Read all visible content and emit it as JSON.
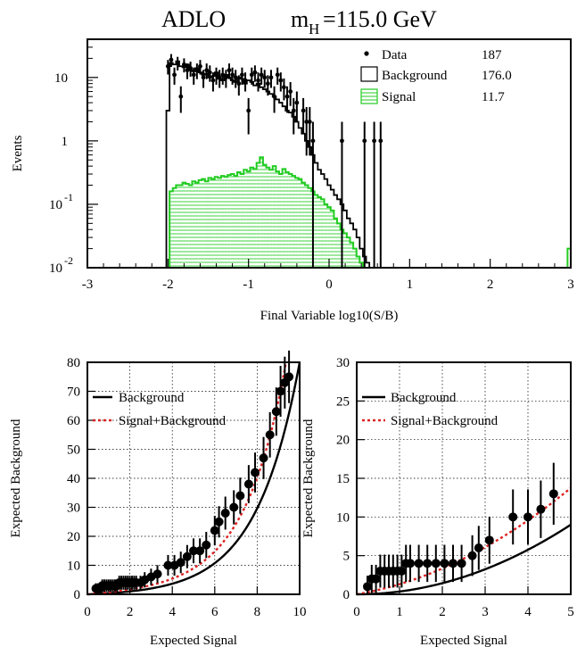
{
  "header": {
    "title_main": "ADLO",
    "title_mass_m": "m",
    "title_mass_sub": "H",
    "title_mass_value": "=115.0 GeV"
  },
  "chart_data": [
    {
      "type": "histogram",
      "title": "ADLO  m_H=115.0 GeV",
      "xlabel": "Final Variable log10(S/B)",
      "ylabel": "Events",
      "y_scale": "log",
      "xlim": [
        -3,
        3
      ],
      "ylim": [
        0.01,
        40
      ],
      "x_ticks": [
        "-3",
        "-2",
        "-1",
        "0",
        "1",
        "2",
        "3"
      ],
      "y_ticks": [
        {
          "value": 10,
          "base": "10",
          "exp": ""
        },
        {
          "value": 1,
          "base": "1",
          "exp": ""
        },
        {
          "value": 0.1,
          "base": "10",
          "exp": "-1"
        },
        {
          "value": 0.01,
          "base": "10",
          "exp": "-2"
        }
      ],
      "legend": {
        "position": "top-right",
        "entries": [
          {
            "label": "Data",
            "value": "187"
          },
          {
            "label": "Background",
            "value": "176.0"
          },
          {
            "label": "Signal",
            "value": "11.7"
          }
        ]
      },
      "bin_edges_start": -2.02,
      "bin_width": 0.04,
      "background": [
        3.0,
        17.0,
        16.0,
        18.0,
        15.0,
        14.5,
        16.0,
        13.0,
        12.5,
        14.0,
        12.0,
        11.0,
        11.5,
        10.0,
        10.5,
        12.0,
        9.5,
        9.0,
        11.0,
        10.0,
        9.0,
        8.5,
        10.0,
        9.5,
        8.0,
        9.0,
        8.5,
        7.5,
        8.0,
        7.0,
        6.5,
        6.0,
        5.5,
        5.0,
        4.5,
        4.0,
        3.5,
        3.0,
        2.8,
        2.4,
        2.0,
        1.6,
        1.3,
        1.0,
        0.8,
        0.6,
        0.45,
        0.35,
        0.3,
        0.25,
        0.2,
        0.17,
        0.14,
        0.12,
        0.1,
        0.08,
        0.06,
        0.05,
        0.04,
        0.03,
        0.02,
        0.015,
        0.012,
        0.01
      ],
      "signal": [
        0.01,
        0.16,
        0.18,
        0.2,
        0.2,
        0.22,
        0.21,
        0.2,
        0.23,
        0.22,
        0.24,
        0.25,
        0.23,
        0.26,
        0.25,
        0.27,
        0.26,
        0.28,
        0.27,
        0.29,
        0.3,
        0.28,
        0.32,
        0.3,
        0.35,
        0.33,
        0.38,
        0.36,
        0.45,
        0.55,
        0.42,
        0.38,
        0.35,
        0.4,
        0.33,
        0.3,
        0.36,
        0.32,
        0.3,
        0.28,
        0.26,
        0.25,
        0.22,
        0.2,
        0.18,
        0.16,
        0.14,
        0.13,
        0.12,
        0.1,
        0.09,
        0.08,
        0.06,
        0.05,
        0.04,
        0.035,
        0.03,
        0.025,
        0.02,
        0.015,
        0.012,
        0.01,
        0.01,
        0.01
      ],
      "data": [
        {
          "x": -2.0,
          "y": 15
        },
        {
          "x": -1.96,
          "y": 19
        },
        {
          "x": -1.92,
          "y": 11
        },
        {
          "x": -1.88,
          "y": 17
        },
        {
          "x": -1.84,
          "y": 5
        },
        {
          "x": -1.8,
          "y": 16
        },
        {
          "x": -1.76,
          "y": 13
        },
        {
          "x": -1.72,
          "y": 14
        },
        {
          "x": -1.68,
          "y": 11
        },
        {
          "x": -1.64,
          "y": 13
        },
        {
          "x": -1.6,
          "y": 15
        },
        {
          "x": -1.56,
          "y": 10
        },
        {
          "x": -1.52,
          "y": 13
        },
        {
          "x": -1.48,
          "y": 12
        },
        {
          "x": -1.44,
          "y": 9
        },
        {
          "x": -1.4,
          "y": 11
        },
        {
          "x": -1.36,
          "y": 10
        },
        {
          "x": -1.32,
          "y": 11
        },
        {
          "x": -1.28,
          "y": 10
        },
        {
          "x": -1.24,
          "y": 13
        },
        {
          "x": -1.2,
          "y": 11
        },
        {
          "x": -1.16,
          "y": 10
        },
        {
          "x": -1.12,
          "y": 8
        },
        {
          "x": -1.08,
          "y": 11
        },
        {
          "x": -1.04,
          "y": 9
        },
        {
          "x": -1.0,
          "y": 3
        },
        {
          "x": -0.96,
          "y": 11
        },
        {
          "x": -0.92,
          "y": 12
        },
        {
          "x": -0.88,
          "y": 9
        },
        {
          "x": -0.84,
          "y": 11
        },
        {
          "x": -0.8,
          "y": 10
        },
        {
          "x": -0.76,
          "y": 8
        },
        {
          "x": -0.72,
          "y": 10
        },
        {
          "x": -0.68,
          "y": 5
        },
        {
          "x": -0.64,
          "y": 11
        },
        {
          "x": -0.6,
          "y": 9
        },
        {
          "x": -0.56,
          "y": 7
        },
        {
          "x": -0.52,
          "y": 5
        },
        {
          "x": -0.48,
          "y": 6
        },
        {
          "x": -0.44,
          "y": 3
        },
        {
          "x": -0.4,
          "y": 4
        },
        {
          "x": -0.32,
          "y": 3
        },
        {
          "x": -0.28,
          "y": 2
        },
        {
          "x": -0.24,
          "y": 2
        },
        {
          "x": -0.2,
          "y": 1
        },
        {
          "x": 0.16,
          "y": 1
        },
        {
          "x": 0.44,
          "y": 1
        },
        {
          "x": 0.56,
          "y": 1
        },
        {
          "x": 0.64,
          "y": 1
        }
      ]
    },
    {
      "type": "scatter",
      "xlabel": "Expected Signal",
      "ylabel": "Expected Background",
      "xlim": [
        0,
        10
      ],
      "ylim": [
        0,
        80
      ],
      "grid": true,
      "x_ticks": [
        0,
        2,
        4,
        6,
        8,
        10
      ],
      "y_ticks": [
        0,
        10,
        20,
        30,
        40,
        50,
        60,
        70,
        80
      ],
      "legend": {
        "position": "top-left",
        "entries": [
          {
            "label": "Background",
            "style": "solid"
          },
          {
            "label": "Signal+Background",
            "style": "dashed-red"
          }
        ]
      },
      "points": [
        [
          0.4,
          2
        ],
        [
          0.5,
          2
        ],
        [
          0.6,
          2
        ],
        [
          0.7,
          3
        ],
        [
          0.8,
          3
        ],
        [
          0.9,
          3
        ],
        [
          1.0,
          3
        ],
        [
          1.1,
          3
        ],
        [
          1.2,
          3
        ],
        [
          1.3,
          3
        ],
        [
          1.4,
          3
        ],
        [
          1.5,
          4
        ],
        [
          1.6,
          4
        ],
        [
          1.7,
          4
        ],
        [
          1.8,
          4
        ],
        [
          1.9,
          4
        ],
        [
          2.0,
          4
        ],
        [
          2.1,
          4
        ],
        [
          2.2,
          4
        ],
        [
          2.3,
          4
        ],
        [
          2.5,
          4
        ],
        [
          2.7,
          5
        ],
        [
          3.0,
          6
        ],
        [
          3.3,
          7
        ],
        [
          3.8,
          10
        ],
        [
          4.1,
          10
        ],
        [
          4.4,
          11
        ],
        [
          4.7,
          13
        ],
        [
          5.0,
          15
        ],
        [
          5.3,
          15
        ],
        [
          5.6,
          17
        ],
        [
          6.0,
          22
        ],
        [
          6.2,
          25
        ],
        [
          6.5,
          28
        ],
        [
          6.9,
          30
        ],
        [
          7.2,
          34
        ],
        [
          7.6,
          38
        ],
        [
          7.9,
          42
        ],
        [
          8.3,
          47
        ],
        [
          8.6,
          55
        ],
        [
          8.9,
          63
        ],
        [
          9.1,
          70
        ],
        [
          9.3,
          73
        ],
        [
          9.5,
          75
        ]
      ]
    },
    {
      "type": "scatter",
      "xlabel": "Expected Signal",
      "ylabel": "Expected Background",
      "xlim": [
        0,
        5
      ],
      "ylim": [
        0,
        30
      ],
      "grid": true,
      "x_ticks": [
        0,
        1,
        2,
        3,
        4,
        5
      ],
      "y_ticks": [
        0,
        5,
        10,
        15,
        20,
        25,
        30
      ],
      "legend": {
        "position": "top-left",
        "entries": [
          {
            "label": "Background",
            "style": "solid"
          },
          {
            "label": "Signal+Background",
            "style": "dashed-red"
          }
        ]
      },
      "points": [
        [
          0.25,
          1
        ],
        [
          0.35,
          2
        ],
        [
          0.45,
          2
        ],
        [
          0.55,
          3
        ],
        [
          0.65,
          3
        ],
        [
          0.75,
          3
        ],
        [
          0.85,
          3
        ],
        [
          0.95,
          3
        ],
        [
          1.05,
          3
        ],
        [
          1.15,
          4
        ],
        [
          1.25,
          4
        ],
        [
          1.45,
          4
        ],
        [
          1.65,
          4
        ],
        [
          1.85,
          4
        ],
        [
          2.05,
          4
        ],
        [
          2.25,
          4
        ],
        [
          2.45,
          4
        ],
        [
          2.7,
          5
        ],
        [
          2.85,
          6
        ],
        [
          3.1,
          7
        ],
        [
          3.65,
          10
        ],
        [
          4.0,
          10
        ],
        [
          4.3,
          11
        ],
        [
          4.6,
          13
        ]
      ]
    }
  ]
}
